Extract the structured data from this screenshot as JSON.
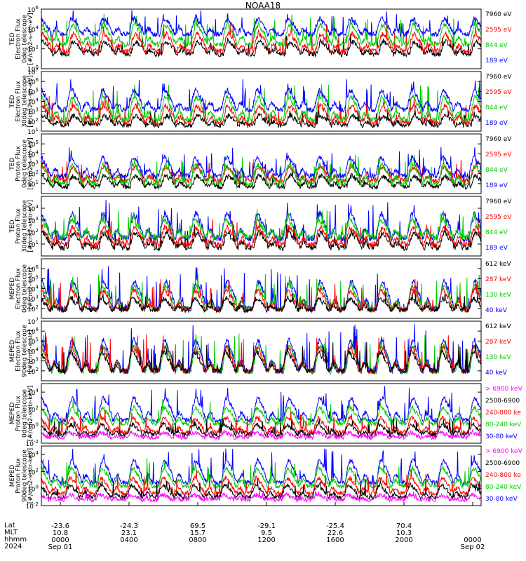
{
  "title": "NOAA18",
  "colors": {
    "blue": "#0000ff",
    "red": "#ff0000",
    "green": "#00cc00",
    "black": "#000000",
    "magenta": "#ff00ff"
  },
  "chart_data": [
    {
      "type": "line",
      "ylabel_lines": [
        "TED",
        "Electron Flux",
        "0deg telescope",
        "[#/cm2-s-str-eV]"
      ],
      "log_y": true,
      "ylim": [
        1,
        1000000
      ],
      "y_ticks": [
        {
          "label": "10",
          "exp": "0"
        },
        {
          "label": "10",
          "exp": "2"
        },
        {
          "label": "10",
          "exp": "4"
        },
        {
          "label": "10",
          "exp": "6"
        }
      ],
      "legend": [
        {
          "text": "7960 eV",
          "color": "#000000"
        },
        {
          "text": "2595 eV",
          "color": "#ff0000"
        },
        {
          "text": "844 eV",
          "color": "#00cc00"
        },
        {
          "text": "189 eV",
          "color": "#0000ff"
        }
      ],
      "series": [
        {
          "color": "#000000",
          "base": 30,
          "peak": 2000
        },
        {
          "color": "#ff0000",
          "base": 60,
          "peak": 20000
        },
        {
          "color": "#00cc00",
          "base": 300,
          "peak": 200000
        },
        {
          "color": "#0000ff",
          "base": 3000,
          "peak": 500000
        }
      ]
    },
    {
      "type": "line",
      "ylabel_lines": [
        "TED",
        "Electron Flux",
        "30deg telescope",
        "[#/cm2-s-str-eV]"
      ],
      "log_y": true,
      "ylim": [
        10,
        10000000
      ],
      "y_ticks": [
        {
          "label": "10",
          "exp": "1"
        },
        {
          "label": "10",
          "exp": "2"
        },
        {
          "label": "10",
          "exp": "3"
        },
        {
          "label": "10",
          "exp": "4"
        },
        {
          "label": "10",
          "exp": "5"
        },
        {
          "label": "10",
          "exp": "6"
        },
        {
          "label": "10",
          "exp": "7"
        }
      ],
      "legend": [
        {
          "text": "7960 eV",
          "color": "#000000"
        },
        {
          "text": "2595 eV",
          "color": "#ff0000"
        },
        {
          "text": "844 eV",
          "color": "#00cc00"
        },
        {
          "text": "189 eV",
          "color": "#0000ff"
        }
      ],
      "series": [
        {
          "color": "#000000",
          "base": 40,
          "peak": 1000
        },
        {
          "color": "#ff0000",
          "base": 80,
          "peak": 20000
        },
        {
          "color": "#00cc00",
          "base": 150,
          "peak": 300000
        },
        {
          "color": "#0000ff",
          "base": 1500,
          "peak": 1000000
        }
      ]
    },
    {
      "type": "line",
      "ylabel_lines": [
        "TED",
        "Proton Flux",
        "0deg telescope",
        "[#/cm2-s-str-eV]"
      ],
      "log_y": true,
      "ylim": [
        1,
        1000000
      ],
      "y_ticks": [
        {
          "label": "10",
          "exp": "1"
        },
        {
          "label": "10",
          "exp": "2"
        },
        {
          "label": "10",
          "exp": "3"
        },
        {
          "label": "10",
          "exp": "4"
        },
        {
          "label": "10",
          "exp": "5"
        }
      ],
      "legend": [
        {
          "text": "7960 eV",
          "color": "#000000"
        },
        {
          "text": "2595 eV",
          "color": "#ff0000"
        },
        {
          "text": "844 eV",
          "color": "#00cc00"
        },
        {
          "text": "189 eV",
          "color": "#0000ff"
        }
      ],
      "series": [
        {
          "color": "#000000",
          "base": 5,
          "peak": 200
        },
        {
          "color": "#ff0000",
          "base": 20,
          "peak": 2000
        },
        {
          "color": "#00cc00",
          "base": 10,
          "peak": 5000
        },
        {
          "color": "#0000ff",
          "base": 60,
          "peak": 30000
        }
      ]
    },
    {
      "type": "line",
      "ylabel_lines": [
        "TED",
        "Proton Flux",
        "30deg telescope",
        "[#/cm2-s-str-eV]"
      ],
      "log_y": true,
      "ylim": [
        1,
        100000
      ],
      "y_ticks": [
        {
          "label": "10",
          "exp": "1"
        },
        {
          "label": "10",
          "exp": "2"
        },
        {
          "label": "10",
          "exp": "3"
        },
        {
          "label": "10",
          "exp": "4"
        }
      ],
      "legend": [
        {
          "text": "7960 eV",
          "color": "#000000"
        },
        {
          "text": "2595 eV",
          "color": "#ff0000"
        },
        {
          "text": "844 eV",
          "color": "#00cc00"
        },
        {
          "text": "189 eV",
          "color": "#0000ff"
        }
      ],
      "series": [
        {
          "color": "#000000",
          "base": 5,
          "peak": 300
        },
        {
          "color": "#ff0000",
          "base": 10,
          "peak": 1000
        },
        {
          "color": "#0000ff",
          "base": 30,
          "peak": 30000
        },
        {
          "color": "#00cc00",
          "base": 40,
          "peak": 5000
        }
      ]
    },
    {
      "type": "line",
      "ylabel_lines": [
        "MEPED",
        "Electron Flux",
        "0deg telescope",
        "[#/cm2-s-str]"
      ],
      "log_y": true,
      "ylim": [
        10,
        10000000
      ],
      "y_ticks": [
        {
          "label": "10",
          "exp": "2"
        },
        {
          "label": "10",
          "exp": "3"
        },
        {
          "label": "10",
          "exp": "4"
        },
        {
          "label": "10",
          "exp": "5"
        },
        {
          "label": "10",
          "exp": "6"
        }
      ],
      "legend": [
        {
          "text": "612 keV",
          "color": "#000000"
        },
        {
          "text": "287 keV",
          "color": "#ff0000"
        },
        {
          "text": "130 keV",
          "color": "#00cc00"
        },
        {
          "text": "40 keV",
          "color": "#0000ff"
        }
      ],
      "series": [
        {
          "color": "#0000ff",
          "base": 100,
          "peak": 1000000
        },
        {
          "color": "#00cc00",
          "base": 90,
          "peak": 200000
        },
        {
          "color": "#ff0000",
          "base": 80,
          "peak": 50000
        },
        {
          "color": "#000000",
          "base": 70,
          "peak": 3000
        }
      ]
    },
    {
      "type": "line",
      "ylabel_lines": [
        "MEPED",
        "Electron Flux",
        "90deg telescope",
        "[#/cm2-s-str]"
      ],
      "log_y": true,
      "ylim": [
        10,
        10000000
      ],
      "y_ticks": [
        {
          "label": "10",
          "exp": "2"
        },
        {
          "label": "10",
          "exp": "3"
        },
        {
          "label": "10",
          "exp": "4"
        },
        {
          "label": "10",
          "exp": "5"
        },
        {
          "label": "10",
          "exp": "6"
        },
        {
          "label": "10",
          "exp": "7"
        }
      ],
      "legend": [
        {
          "text": "612 keV",
          "color": "#000000"
        },
        {
          "text": "287 keV",
          "color": "#ff0000"
        },
        {
          "text": "130 keV",
          "color": "#00cc00"
        },
        {
          "text": "40 keV",
          "color": "#0000ff"
        }
      ],
      "series": [
        {
          "color": "#00cc00",
          "base": 80,
          "peak": 500000
        },
        {
          "color": "#0000ff",
          "base": 100,
          "peak": 3000000
        },
        {
          "color": "#ff0000",
          "base": 100,
          "peak": 300000
        },
        {
          "color": "#000000",
          "base": 100,
          "peak": 50000
        }
      ]
    },
    {
      "type": "line",
      "ylabel_lines": [
        "MEPED",
        "Proton Flux",
        "0deg telescope",
        "[#/cm2-s-str-keV]"
      ],
      "log_y": true,
      "ylim": [
        0.01,
        100000
      ],
      "y_ticks": [
        {
          "label": "10",
          "exp": "-2"
        },
        {
          "label": "10",
          "exp": "0"
        },
        {
          "label": "10",
          "exp": "2"
        },
        {
          "label": "10",
          "exp": "4"
        }
      ],
      "legend": [
        {
          "text": "> 6900 keV",
          "color": "#ff00ff"
        },
        {
          "text": "2500-6900",
          "color": "#000000"
        },
        {
          "text": "240-800 ke",
          "color": "#ff0000"
        },
        {
          "text": "80-240 keV",
          "color": "#00cc00"
        },
        {
          "text": "30-80 keV",
          "color": "#0000ff"
        }
      ],
      "series": [
        {
          "color": "#0000ff",
          "base": 5,
          "peak": 30000
        },
        {
          "color": "#00cc00",
          "base": 2,
          "peak": 1000
        },
        {
          "color": "#ff0000",
          "base": 0.2,
          "peak": 50
        },
        {
          "color": "#000000",
          "base": 0.1,
          "peak": 5
        },
        {
          "color": "#ff00ff",
          "base": 0.05,
          "peak": 0.3
        }
      ]
    },
    {
      "type": "line",
      "ylabel_lines": [
        "MEPED",
        "Proton Flux",
        "90deg telescope",
        "[#/cm2-s-str-keV]"
      ],
      "log_y": true,
      "ylim": [
        0.01,
        100000
      ],
      "y_ticks": [
        {
          "label": "10",
          "exp": "-2"
        },
        {
          "label": "10",
          "exp": "0"
        },
        {
          "label": "10",
          "exp": "2"
        },
        {
          "label": "10",
          "exp": "4"
        }
      ],
      "legend": [
        {
          "text": "> 6900 keV",
          "color": "#ff00ff"
        },
        {
          "text": "2500-6900",
          "color": "#000000"
        },
        {
          "text": "240-800 ke",
          "color": "#ff0000"
        },
        {
          "text": "80-240 keV",
          "color": "#00cc00"
        },
        {
          "text": "30-80 keV",
          "color": "#0000ff"
        }
      ],
      "series": [
        {
          "color": "#0000ff",
          "base": 5,
          "peak": 30000
        },
        {
          "color": "#00cc00",
          "base": 2,
          "peak": 2000
        },
        {
          "color": "#ff0000",
          "base": 0.3,
          "peak": 100
        },
        {
          "color": "#000000",
          "base": 0.1,
          "peak": 10
        },
        {
          "color": "#ff00ff",
          "base": 0.05,
          "peak": 0.3
        }
      ]
    }
  ],
  "x_axis": {
    "row_labels": [
      "Lat",
      "MLT",
      "hhmm",
      "2024"
    ],
    "ticks": [
      {
        "lat": "-23.6",
        "mlt": "10.8",
        "hhmm": "0000",
        "date": "Sep 01"
      },
      {
        "lat": "-24.3",
        "mlt": "23.1",
        "hhmm": "0400",
        "date": ""
      },
      {
        "lat": "69.5",
        "mlt": "15.7",
        "hhmm": "0800",
        "date": ""
      },
      {
        "lat": "-29.1",
        "mlt": "9.5",
        "hhmm": "1200",
        "date": ""
      },
      {
        "lat": "-25.4",
        "mlt": "22.6",
        "hhmm": "1600",
        "date": ""
      },
      {
        "lat": "70.4",
        "mlt": "10.3",
        "hhmm": "2000",
        "date": ""
      },
      {
        "lat": "",
        "mlt": "",
        "hhmm": "0000",
        "date": "Sep 02"
      }
    ]
  }
}
